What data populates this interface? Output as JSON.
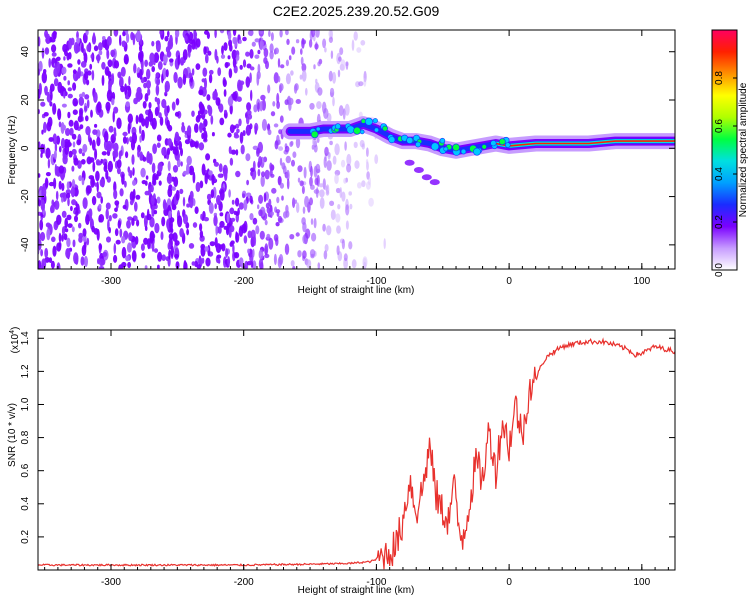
{
  "page": {
    "title": "C2E2.2025.239.20.52.G09"
  },
  "colors": {
    "accent": "#7a00ff",
    "snr_line": "#e8312d",
    "colorbar_stops": [
      "#ffffff",
      "#c79cff",
      "#7a00ff",
      "#1a2cff",
      "#00a0ff",
      "#00e0e0",
      "#00ff40",
      "#b0ff00",
      "#ffff00",
      "#ff9000",
      "#ff2000",
      "#ff0060"
    ]
  },
  "chart_data": [
    {
      "type": "heatmap",
      "title": "C2E2.2025.239.20.52.G09",
      "xlabel": "Height of straight line (km)",
      "ylabel": "Frequency (Hz)",
      "xlim": [
        -355,
        125
      ],
      "ylim": [
        -50,
        49
      ],
      "x_ticks": [
        -300,
        -200,
        -100,
        0,
        100
      ],
      "x_tick_labels": [
        "-300",
        "-200",
        "-100",
        "0",
        "100"
      ],
      "y_ticks": [
        -40,
        -20,
        0,
        20,
        40
      ],
      "y_tick_labels": [
        "-40",
        "-20",
        "0",
        "20",
        "40"
      ],
      "colorbar": {
        "label": "Normalized spectral amplitude",
        "range": [
          0.0,
          1.0
        ],
        "ticks": [
          0.0,
          0.2,
          0.4,
          0.6,
          0.8
        ],
        "tick_labels": [
          "0.0",
          "0.2",
          "0.4",
          "0.6",
          "0.8"
        ]
      },
      "signal_track": {
        "x": [
          -165,
          -150,
          -140,
          -130,
          -120,
          -110,
          -100,
          -90,
          -80,
          -70,
          -60,
          -50,
          -40,
          -30,
          -20,
          -10,
          0,
          20,
          40,
          60,
          80,
          100,
          125
        ],
        "y": [
          7,
          7,
          8,
          8,
          8,
          10,
          8,
          5,
          3,
          3,
          2,
          0,
          -1,
          0,
          1,
          2,
          1,
          2,
          2,
          2,
          3,
          3,
          3
        ]
      },
      "noise_region": {
        "x_range": [
          -355,
          -100
        ],
        "y_range": [
          -50,
          49
        ]
      }
    },
    {
      "type": "line",
      "title": "",
      "xlabel": "Height of straight line (km)",
      "ylabel": "SNR (10 * v/v)",
      "y_scale_label": "(x10",
      "y_scale_exponent": "4",
      "y_scale_suffix": ")",
      "xlim": [
        -355,
        125
      ],
      "ylim": [
        0,
        1.45
      ],
      "x_ticks": [
        -300,
        -200,
        -100,
        0,
        100
      ],
      "x_tick_labels": [
        "-300",
        "-200",
        "-100",
        "0",
        "100"
      ],
      "y_ticks": [
        0.2,
        0.4,
        0.6,
        0.8,
        1.0,
        1.2,
        1.4
      ],
      "y_tick_labels": [
        "0.2",
        "0.4",
        "0.6",
        "0.8",
        "1.0",
        "1.2",
        "1.4"
      ],
      "series": [
        {
          "name": "SNR",
          "x": [
            -355,
            -300,
            -250,
            -200,
            -150,
            -120,
            -105,
            -95,
            -85,
            -80,
            -75,
            -70,
            -65,
            -60,
            -55,
            -50,
            -45,
            -42,
            -38,
            -35,
            -30,
            -25,
            -20,
            -15,
            -10,
            -5,
            0,
            5,
            10,
            15,
            20,
            25,
            30,
            40,
            50,
            60,
            70,
            80,
            90,
            95,
            100,
            110,
            120,
            125
          ],
          "y": [
            0.03,
            0.03,
            0.03,
            0.03,
            0.035,
            0.04,
            0.05,
            0.08,
            0.15,
            0.3,
            0.55,
            0.35,
            0.5,
            0.75,
            0.45,
            0.35,
            0.3,
            0.55,
            0.25,
            0.2,
            0.4,
            0.65,
            0.55,
            0.85,
            0.6,
            0.9,
            0.75,
            1.0,
            0.8,
            1.1,
            1.15,
            1.25,
            1.3,
            1.35,
            1.37,
            1.38,
            1.38,
            1.36,
            1.33,
            1.3,
            1.31,
            1.35,
            1.33,
            1.32
          ]
        }
      ]
    }
  ]
}
